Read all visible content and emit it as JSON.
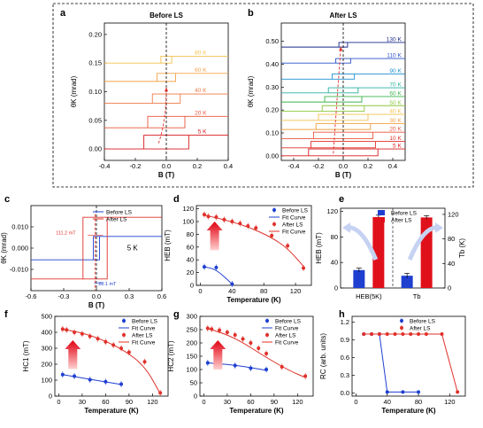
{
  "chart_data": [
    {
      "panel": "a",
      "type": "line",
      "title": "Before LS",
      "xlabel": "B (T)",
      "ylabel": "θK (mrad)",
      "xlim": [
        -0.4,
        0.4
      ],
      "ylim": [
        -0.02,
        0.22
      ],
      "xticks": [
        "-0.4",
        "-0.2",
        "0.0",
        "0.2",
        "0.4"
      ],
      "yticks": [
        "0.00",
        "0.05",
        "0.10",
        "0.15",
        "0.20"
      ],
      "ytick_values": [
        0,
        0.05,
        0.1,
        0.15,
        0.2
      ],
      "series": [
        {
          "name": "5 K",
          "color": "#d7191c",
          "offset": 0.0,
          "height": 0.024,
          "hc": 0.145,
          "label_x": 0.26
        },
        {
          "name": "20 K",
          "color": "#e8553a",
          "offset": 0.037,
          "height": 0.02,
          "hc": 0.12,
          "label_x": 0.26
        },
        {
          "name": "40 K",
          "color": "#ee7a45",
          "offset": 0.08,
          "height": 0.016,
          "hc": 0.09,
          "label_x": 0.26
        },
        {
          "name": "60 K",
          "color": "#f2a24a",
          "offset": 0.118,
          "height": 0.014,
          "hc": 0.06,
          "label_x": 0.26
        },
        {
          "name": "80 K",
          "color": "#f3c04d",
          "offset": 0.15,
          "height": 0.012,
          "hc": 0.035,
          "label_x": 0.26
        }
      ]
    },
    {
      "panel": "b",
      "type": "line",
      "title": "After LS",
      "xlabel": "B (T)",
      "ylabel": "θK (mrad)",
      "xlim": [
        -0.5,
        0.5
      ],
      "ylim": [
        -0.02,
        0.58
      ],
      "xticks": [
        "-0.4",
        "-0.2",
        "0.0",
        "0.2",
        "0.4"
      ],
      "xtick_values": [
        -0.4,
        -0.2,
        0,
        0.2,
        0.4
      ],
      "yticks": [
        "0.00",
        "0.10",
        "0.20",
        "0.30",
        "0.40",
        "0.50"
      ],
      "ytick_values": [
        0,
        0.1,
        0.2,
        0.3,
        0.4,
        0.5
      ],
      "series": [
        {
          "name": "5 K",
          "color": "#d7191c",
          "offset": 0.0,
          "height": 0.03,
          "hc": 0.28
        },
        {
          "name": "10 K",
          "color": "#e0302a",
          "offset": 0.035,
          "height": 0.028,
          "hc": 0.26
        },
        {
          "name": "20 K",
          "color": "#e8553a",
          "offset": 0.075,
          "height": 0.028,
          "hc": 0.24
        },
        {
          "name": "30 K",
          "color": "#f0a040",
          "offset": 0.115,
          "height": 0.026,
          "hc": 0.22
        },
        {
          "name": "40 K",
          "color": "#f3c04d",
          "offset": 0.155,
          "height": 0.026,
          "hc": 0.2
        },
        {
          "name": "50 K",
          "color": "#8cc63f",
          "offset": 0.195,
          "height": 0.024,
          "hc": 0.17
        },
        {
          "name": "60 K",
          "color": "#3cb44b",
          "offset": 0.235,
          "height": 0.024,
          "hc": 0.15
        },
        {
          "name": "70 K",
          "color": "#2ab0a0",
          "offset": 0.275,
          "height": 0.022,
          "hc": 0.12
        },
        {
          "name": "90 K",
          "color": "#1f8fd0",
          "offset": 0.335,
          "height": 0.022,
          "hc": 0.09
        },
        {
          "name": "110 K",
          "color": "#2850c8",
          "offset": 0.405,
          "height": 0.02,
          "hc": 0.06
        },
        {
          "name": "130 K",
          "color": "#1a2a8a",
          "offset": 0.475,
          "height": 0.02,
          "hc": 0.035
        }
      ]
    },
    {
      "panel": "c",
      "type": "line",
      "xlabel": "B (T)",
      "ylabel": "θK (mrad)",
      "xlim": [
        -0.6,
        0.6
      ],
      "ylim": [
        -0.02,
        0.02
      ],
      "xticks": [
        "-0.6",
        "-0.3",
        "0.0",
        "0.3",
        "0.6"
      ],
      "yticks": [
        "-0.010",
        "0.000",
        "0.010"
      ],
      "ytick_values": [
        -0.01,
        0,
        0.01
      ],
      "annotations": [
        "111.2 mT",
        "28.1 mT",
        "5 K"
      ],
      "series": [
        {
          "name": "Before LS",
          "color": "#1f3fd0",
          "height": 0.0055,
          "hc": 0.028,
          "shift": 0.0
        },
        {
          "name": "After LS",
          "color": "#e0302a",
          "height": 0.0145,
          "hc": 0.111,
          "shift": -0.012
        }
      ]
    },
    {
      "panel": "d",
      "type": "scatter",
      "xlabel": "Temperature (K)",
      "ylabel": "HEB (mT)",
      "xlim": [
        -5,
        140
      ],
      "ylim": [
        0,
        125
      ],
      "xticks": [
        "0",
        "40",
        "80",
        "120"
      ],
      "xtick_values": [
        0,
        40,
        80,
        120
      ],
      "yticks": [
        "0",
        "20",
        "40",
        "60",
        "80",
        "100",
        "120"
      ],
      "ytick_values": [
        0,
        20,
        40,
        60,
        80,
        100,
        120
      ],
      "series": [
        {
          "name": "Before LS",
          "color": "#1f3fd0",
          "x": [
            5,
            20,
            40
          ],
          "y": [
            29,
            28,
            2
          ]
        },
        {
          "name": "Fit Curve",
          "color": "#1f3fd0",
          "fit": true,
          "x": [
            5,
            20,
            40
          ],
          "y": [
            29,
            25,
            2
          ]
        },
        {
          "name": "After LS",
          "color": "#e0302a",
          "x": [
            5,
            10,
            20,
            30,
            40,
            50,
            60,
            70,
            90,
            110,
            130
          ],
          "y": [
            111,
            108,
            107,
            103,
            100,
            97,
            93,
            90,
            78,
            62,
            27
          ]
        },
        {
          "name": "Fit Curve",
          "color": "#e0302a",
          "fit": true,
          "x": [
            5,
            30,
            60,
            90,
            110,
            130
          ],
          "y": [
            110,
            103,
            92,
            75,
            58,
            30
          ]
        }
      ]
    },
    {
      "panel": "e",
      "type": "bar",
      "categories": [
        "HEB(5K)",
        "Tb"
      ],
      "ylabel": "HEB (mT)",
      "y2label": "Tb (K)",
      "ylim": [
        0,
        125
      ],
      "y2lim": [
        0,
        130
      ],
      "yticks": [
        "0",
        "40",
        "80",
        "120"
      ],
      "ytick_values": [
        0,
        40,
        80,
        120
      ],
      "y2ticks": [
        "0",
        "40",
        "80",
        "120"
      ],
      "y2tick_values": [
        0,
        40,
        80,
        120
      ],
      "series": [
        {
          "name": "Before LS",
          "color": "#1f3fd0",
          "values": [
            28.1,
            20
          ],
          "errors": [
            3,
            4
          ]
        },
        {
          "name": "After LS",
          "color": "#e0101a",
          "values": [
            111.2,
            115
          ],
          "errors": [
            3,
            3
          ]
        }
      ]
    },
    {
      "panel": "f",
      "type": "scatter",
      "xlabel": "Temperature (K)",
      "ylabel": "HC1 (mT)",
      "xlim": [
        -5,
        140
      ],
      "ylim": [
        0,
        500
      ],
      "xticks": [
        "0",
        "30",
        "60",
        "90",
        "120"
      ],
      "xtick_values": [
        0,
        30,
        60,
        90,
        120
      ],
      "yticks": [
        "0",
        "100",
        "200",
        "300",
        "400",
        "500"
      ],
      "ytick_values": [
        0,
        100,
        200,
        300,
        400,
        500
      ],
      "series": [
        {
          "name": "Before LS",
          "color": "#1f3fd0",
          "x": [
            5,
            20,
            40,
            60,
            80
          ],
          "y": [
            135,
            125,
            103,
            90,
            75
          ]
        },
        {
          "name": "Fit Curve",
          "color": "#1f3fd0",
          "fit": true,
          "x": [
            5,
            40,
            80
          ],
          "y": [
            135,
            105,
            73
          ]
        },
        {
          "name": "After LS",
          "color": "#e0302a",
          "x": [
            5,
            10,
            20,
            30,
            40,
            50,
            60,
            70,
            80,
            90,
            110,
            130
          ],
          "y": [
            420,
            415,
            400,
            390,
            375,
            360,
            340,
            320,
            300,
            275,
            215,
            20
          ]
        },
        {
          "name": "Fit Curve",
          "color": "#e0302a",
          "fit": true,
          "x": [
            5,
            40,
            80,
            110,
            130
          ],
          "y": [
            420,
            385,
            300,
            190,
            15
          ]
        }
      ]
    },
    {
      "panel": "g",
      "type": "scatter",
      "xlabel": "Temperature (K)",
      "ylabel": "HC2 (mT)",
      "xlim": [
        -5,
        140
      ],
      "ylim": [
        0,
        300
      ],
      "xticks": [
        "0",
        "30",
        "60",
        "90",
        "120"
      ],
      "xtick_values": [
        0,
        30,
        60,
        90,
        120
      ],
      "yticks": [
        "0",
        "50",
        "100",
        "150",
        "200",
        "250",
        "300"
      ],
      "ytick_values": [
        0,
        50,
        100,
        150,
        200,
        250,
        300
      ],
      "series": [
        {
          "name": "Before LS",
          "color": "#1f3fd0",
          "x": [
            5,
            20,
            40,
            60,
            80
          ],
          "y": [
            125,
            123,
            115,
            105,
            100
          ]
        },
        {
          "name": "Fit Curve",
          "color": "#1f3fd0",
          "fit": true,
          "x": [
            5,
            40,
            80
          ],
          "y": [
            125,
            117,
            97
          ]
        },
        {
          "name": "After LS",
          "color": "#e0302a",
          "x": [
            5,
            10,
            20,
            30,
            40,
            50,
            60,
            70,
            80,
            100,
            130
          ],
          "y": [
            255,
            252,
            248,
            240,
            230,
            215,
            200,
            180,
            160,
            110,
            75
          ]
        },
        {
          "name": "Fit Curve",
          "color": "#e0302a",
          "fit": true,
          "x": [
            5,
            40,
            80,
            110,
            130
          ],
          "y": [
            255,
            220,
            145,
            95,
            70
          ]
        }
      ]
    },
    {
      "panel": "h",
      "type": "line",
      "xlabel": "Temperature (K)",
      "ylabel": "RC (arb. units)",
      "xlim": [
        -5,
        140
      ],
      "ylim": [
        -0.05,
        1.3
      ],
      "xticks": [
        "0",
        "40",
        "80",
        "120"
      ],
      "xtick_values": [
        0,
        40,
        80,
        120
      ],
      "yticks": [
        "0.0",
        "0.3",
        "0.6",
        "0.9",
        "1.2"
      ],
      "ytick_values": [
        0,
        0.3,
        0.6,
        0.9,
        1.2
      ],
      "series": [
        {
          "name": "Before LS",
          "color": "#1f3fd0",
          "x": [
            10,
            20,
            30,
            40,
            60,
            80
          ],
          "y": [
            1,
            1,
            1,
            0.02,
            0.02,
            0.02
          ]
        },
        {
          "name": "After LS",
          "color": "#e0302a",
          "x": [
            10,
            20,
            30,
            40,
            50,
            60,
            70,
            80,
            90,
            110,
            130
          ],
          "y": [
            1,
            1,
            1,
            1,
            1,
            1,
            1,
            1,
            1,
            1,
            0.02
          ]
        }
      ]
    }
  ]
}
